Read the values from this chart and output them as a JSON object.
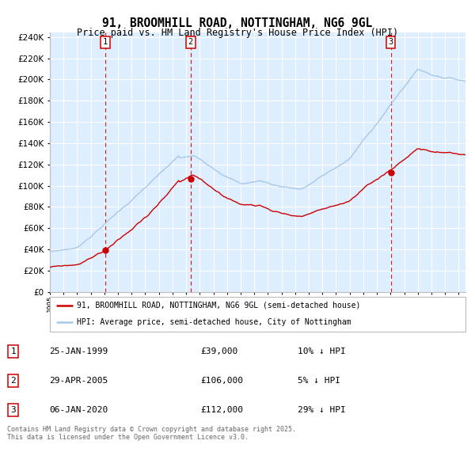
{
  "title": "91, BROOMHILL ROAD, NOTTINGHAM, NG6 9GL",
  "subtitle": "Price paid vs. HM Land Registry's House Price Index (HPI)",
  "legend_property": "91, BROOMHILL ROAD, NOTTINGHAM, NG6 9GL (semi-detached house)",
  "legend_hpi": "HPI: Average price, semi-detached house, City of Nottingham",
  "footer_line1": "Contains HM Land Registry data © Crown copyright and database right 2025.",
  "footer_line2": "This data is licensed under the Open Government Licence v3.0.",
  "sales": [
    {
      "num": 1,
      "date": "25-JAN-1999",
      "date_dec": 1999.07,
      "price": 39000,
      "hpi_diff": "10% ↓ HPI"
    },
    {
      "num": 2,
      "date": "29-APR-2005",
      "date_dec": 2005.33,
      "price": 106000,
      "hpi_diff": "5% ↓ HPI"
    },
    {
      "num": 3,
      "date": "06-JAN-2020",
      "date_dec": 2020.02,
      "price": 112000,
      "hpi_diff": "29% ↓ HPI"
    }
  ],
  "hpi_color": "#a8c8e8",
  "property_color": "#cc0000",
  "vline_color": "#cc0000",
  "plot_bg": "#ddeeff",
  "grid_color": "#ffffff",
  "ylim": [
    0,
    244000
  ],
  "yticks": [
    0,
    20000,
    40000,
    60000,
    80000,
    100000,
    120000,
    140000,
    160000,
    180000,
    200000,
    220000,
    240000
  ],
  "xstart": 1995.0,
  "xend": 2025.5
}
